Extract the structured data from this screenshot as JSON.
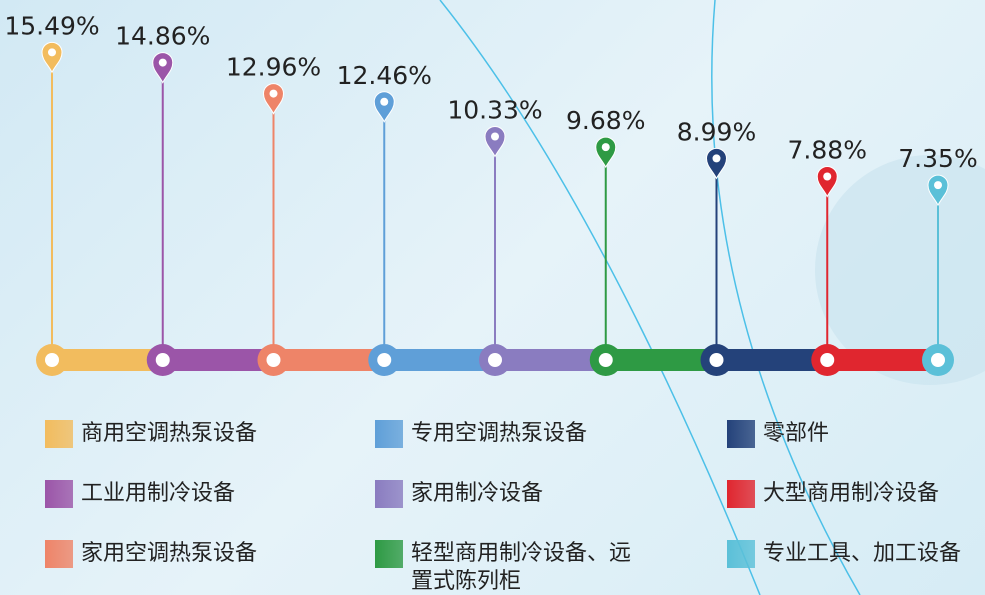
{
  "chart_data": {
    "type": "lollipop",
    "categories": [
      "商用空调热泵设备",
      "工业用制冷设备",
      "家用空调热泵设备",
      "专用空调热泵设备",
      "家用制冷设备",
      "轻型商用制冷设备、远置式陈列柜",
      "零部件",
      "大型商用制冷设备",
      "专业工具、加工设备"
    ],
    "values": [
      15.49,
      14.86,
      12.96,
      12.46,
      10.33,
      9.68,
      8.99,
      7.88,
      7.35
    ],
    "value_labels": [
      "15.49%",
      "14.86%",
      "12.96%",
      "12.46%",
      "10.33%",
      "9.68%",
      "8.99%",
      "7.88%",
      "7.35%"
    ],
    "colors": [
      "#f2bc5e",
      "#9b55a8",
      "#ee8468",
      "#5f9fd8",
      "#8a7cc0",
      "#2e9a44",
      "#24427a",
      "#e0262f",
      "#5bc0d8"
    ],
    "ylim": [
      -3,
      16
    ]
  }
}
